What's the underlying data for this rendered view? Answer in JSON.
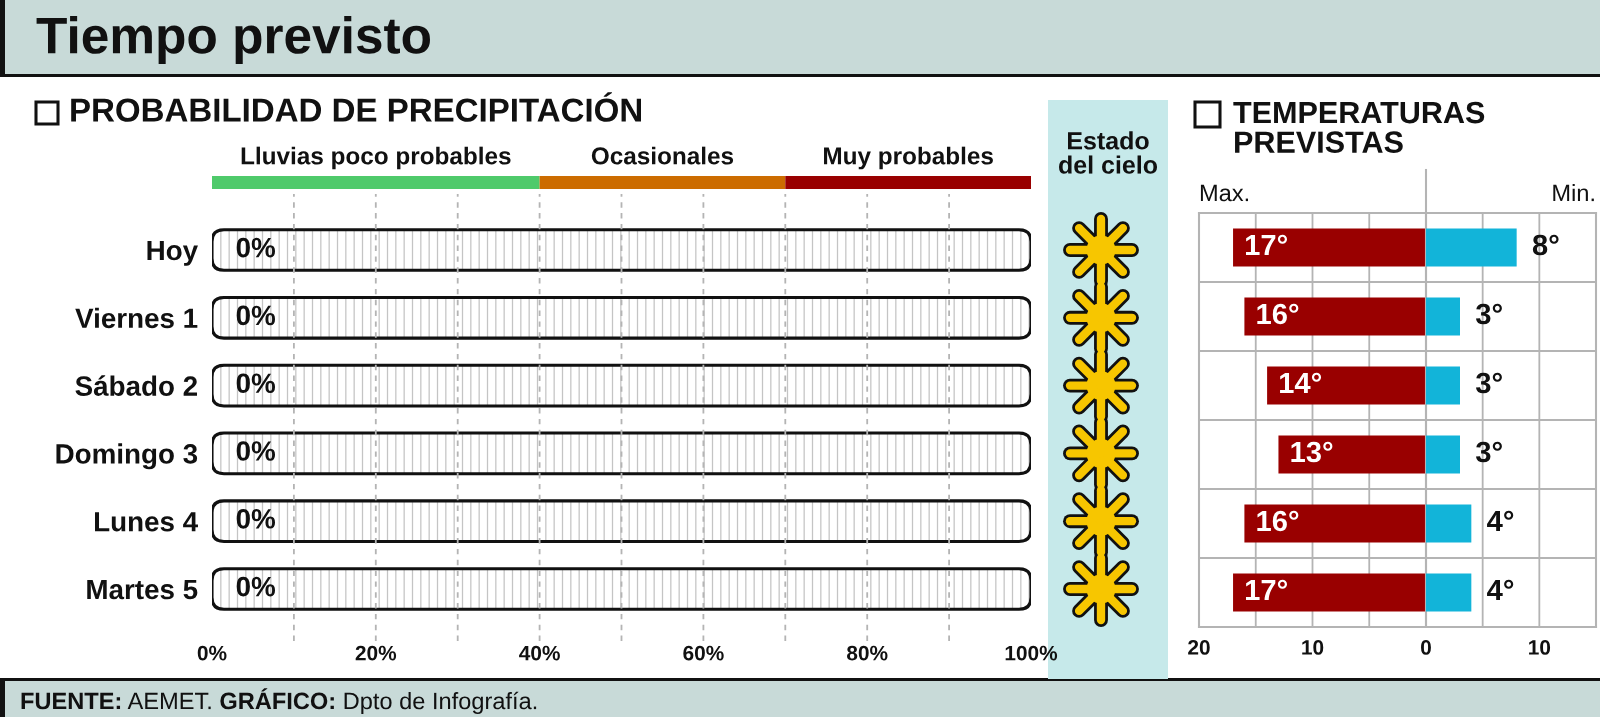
{
  "chart_data": [
    {
      "type": "bar",
      "orientation": "horizontal",
      "stacked": true,
      "title": "Tiempo previsto",
      "subtitle": "PROBABILIDAD DE PRECIPITACIÓN",
      "categories": [
        null
      ],
      "series": [
        {
          "name": "Lluvias poco probables",
          "color": "#4fca6b",
          "values": [
            40
          ]
        },
        {
          "name": "Ocasionales",
          "color": "#cc6c00",
          "values": [
            30
          ]
        },
        {
          "name": "Muy probables",
          "color": "#990000",
          "values": [
            30
          ]
        }
      ],
      "xlim": [
        0,
        100
      ],
      "tick_labels": false
    },
    {
      "type": "bar",
      "orientation": "horizontal",
      "categories": [
        "Hoy",
        "Viernes 1",
        "Sábado 2",
        "Domingo 3",
        "Lunes 4",
        "Martes 5"
      ],
      "series": [
        {
          "values": [
            0,
            0,
            0,
            0,
            0,
            0
          ],
          "value_labels": [
            "0%",
            "0%",
            "0%",
            "0%",
            "0%",
            "0%"
          ]
        },
        {
          "color": "#111111",
          "values": [
            100,
            100,
            100,
            100,
            100,
            100
          ]
        }
      ],
      "xlim": [
        0,
        100
      ],
      "xticks": [
        {
          "value": 0,
          "label": "0%"
        },
        {
          "value": 10,
          "label": null
        },
        {
          "value": 20,
          "label": "20%"
        },
        {
          "value": 30,
          "label": null
        },
        {
          "value": 40,
          "label": "40%"
        },
        {
          "value": 50,
          "label": null
        },
        {
          "value": 60,
          "label": "60%"
        },
        {
          "value": 70,
          "label": null
        },
        {
          "value": 80,
          "label": "80%"
        },
        {
          "value": 90,
          "label": null
        },
        {
          "value": 100,
          "label": "100%"
        }
      ],
      "grid": "x",
      "annotations": [
        "FUENTE: AEMET. GRÁFICO: Dpto de Infografía."
      ]
    },
    {
      "type": "other",
      "title": "Estado\ndel cielo"
    },
    {
      "type": "bar",
      "orientation": "horizontal",
      "title": "TEMPERATURAS\nPREVISTAS",
      "xlabel": "Max.",
      "categories": [
        null,
        null,
        null,
        null,
        null,
        null
      ],
      "values": [
        17,
        16,
        14,
        13,
        16,
        17
      ],
      "value_labels": [
        "17°",
        "16°",
        "14°",
        "13°",
        "16°",
        "17°"
      ],
      "color": "#990000",
      "xlim": [
        20,
        0
      ],
      "xticks": [
        20,
        {
          "value": 15,
          "label": null
        },
        10,
        {
          "value": 5,
          "label": null
        },
        0
      ],
      "grid": true,
      "tick_labels": "x"
    },
    {
      "type": "bar",
      "orientation": "horizontal",
      "xlabel": "Min.",
      "categories": [
        null,
        null,
        null,
        null,
        null,
        null
      ],
      "values": [
        8,
        3,
        3,
        3,
        4,
        4
      ],
      "value_labels": [
        "8°",
        "3°",
        "3°",
        "3°",
        "4°",
        "4°"
      ],
      "color": "#12b4d9",
      "xlim": [
        0,
        15
      ],
      "xticks": [
        {
          "value": 0,
          "label": null
        },
        {
          "value": 5,
          "label": null
        },
        10
      ],
      "grid": true,
      "tick_labels": "x"
    }
  ]
}
